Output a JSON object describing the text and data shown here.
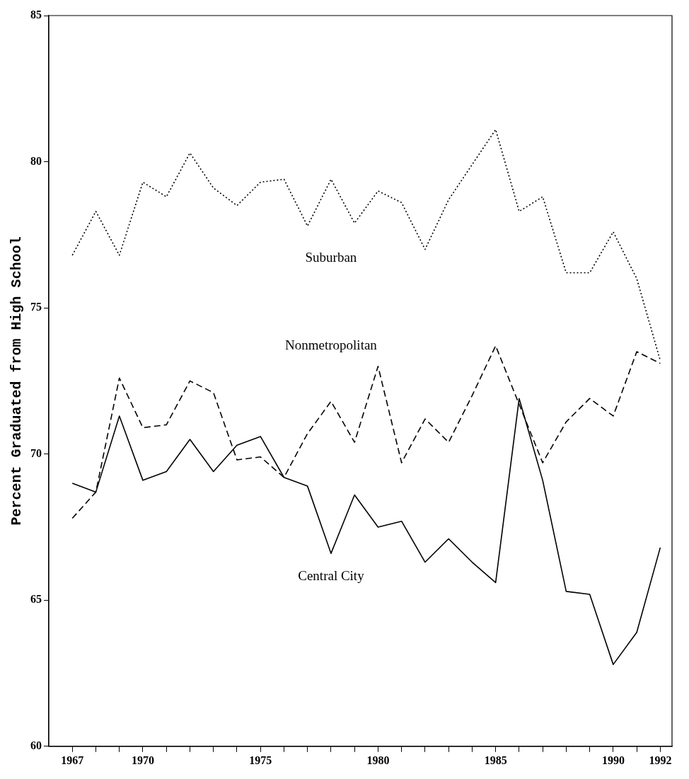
{
  "chart_data": {
    "type": "line",
    "ylabel": "Percent Graduated from High School",
    "x": [
      1967,
      1968,
      1969,
      1970,
      1971,
      1972,
      1973,
      1974,
      1975,
      1976,
      1977,
      1978,
      1979,
      1980,
      1981,
      1982,
      1983,
      1984,
      1985,
      1986,
      1987,
      1988,
      1989,
      1990,
      1991,
      1992
    ],
    "series": [
      {
        "name": "Suburban",
        "color": "#000000",
        "line_style": "dotted",
        "values": [
          76.8,
          78.3,
          76.8,
          79.3,
          78.8,
          80.3,
          79.1,
          78.5,
          79.3,
          79.4,
          77.8,
          79.4,
          77.9,
          79.0,
          78.6,
          77.0,
          78.7,
          79.9,
          81.1,
          78.3,
          78.8,
          76.2,
          76.2,
          77.6,
          76.0,
          73.2
        ]
      },
      {
        "name": "Nonmetropolitan",
        "color": "#000000",
        "line_style": "dashed",
        "values": [
          67.8,
          68.7,
          72.6,
          70.9,
          71.0,
          72.5,
          72.1,
          69.8,
          69.9,
          69.2,
          70.7,
          71.8,
          70.4,
          73.0,
          69.7,
          71.2,
          70.4,
          72.0,
          73.7,
          71.7,
          69.7,
          71.1,
          71.9,
          71.3,
          73.5,
          73.1
        ]
      },
      {
        "name": "Central City",
        "color": "#000000",
        "line_style": "solid",
        "values": [
          69.0,
          68.7,
          71.3,
          69.1,
          69.4,
          70.5,
          69.4,
          70.3,
          70.6,
          69.2,
          68.9,
          66.6,
          68.6,
          67.5,
          67.7,
          66.3,
          67.1,
          66.3,
          65.6,
          71.9,
          69.1,
          65.3,
          65.2,
          62.8,
          63.9,
          66.8
        ]
      }
    ],
    "xlim": [
      1966,
      1992.5
    ],
    "xticks": [
      {
        "value": 1967,
        "label": "1967"
      },
      {
        "value": 1968,
        "label": null
      },
      {
        "value": 1969,
        "label": null
      },
      {
        "value": 1970,
        "label": "1970"
      },
      {
        "value": 1971,
        "label": null
      },
      {
        "value": 1972,
        "label": null
      },
      {
        "value": 1973,
        "label": null
      },
      {
        "value": 1974,
        "label": null
      },
      {
        "value": 1975,
        "label": "1975"
      },
      {
        "value": 1976,
        "label": null
      },
      {
        "value": 1977,
        "label": null
      },
      {
        "value": 1978,
        "label": null
      },
      {
        "value": 1979,
        "label": null
      },
      {
        "value": 1980,
        "label": "1980"
      },
      {
        "value": 1981,
        "label": null
      },
      {
        "value": 1982,
        "label": null
      },
      {
        "value": 1983,
        "label": null
      },
      {
        "value": 1984,
        "label": null
      },
      {
        "value": 1985,
        "label": "1985"
      },
      {
        "value": 1986,
        "label": null
      },
      {
        "value": 1987,
        "label": null
      },
      {
        "value": 1988,
        "label": null
      },
      {
        "value": 1989,
        "label": null
      },
      {
        "value": 1990,
        "label": "1990"
      },
      {
        "value": 1991,
        "label": null
      },
      {
        "value": 1992,
        "label": "1992"
      }
    ],
    "ylim": [
      60,
      85
    ],
    "yticks": [
      60,
      65,
      70,
      75,
      80,
      85
    ],
    "grid": false,
    "legend": false,
    "marker": "none"
  }
}
